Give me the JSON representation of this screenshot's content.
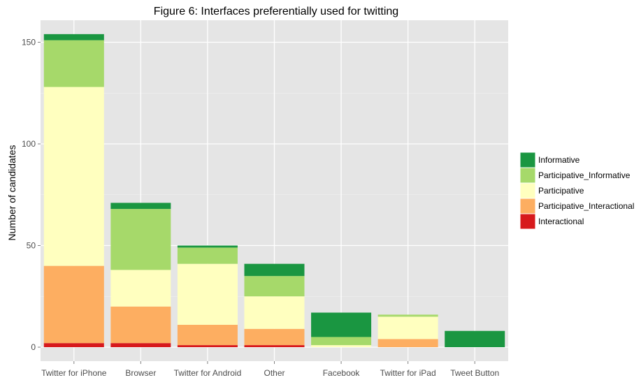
{
  "chart_data": {
    "type": "bar",
    "stacked": true,
    "title": "Figure 6: Interfaces preferentially used for twitting",
    "xlabel": "",
    "ylabel": "Number of candidates",
    "ylim": [
      0,
      155
    ],
    "yticks": [
      0,
      50,
      100,
      150
    ],
    "grid": true,
    "legend_position": "right",
    "categories": [
      "Twitter for iPhone",
      "Browser",
      "Twitter for Android",
      "Other",
      "Facebook",
      "Twitter for iPad",
      "Tweet Button"
    ],
    "series": [
      {
        "name": "Interactional",
        "color": "#d7191c",
        "values": [
          2,
          2,
          1,
          1,
          0,
          0,
          0
        ]
      },
      {
        "name": "Participative_Interactional",
        "color": "#fdae61",
        "values": [
          38,
          18,
          10,
          8,
          0,
          4,
          0
        ]
      },
      {
        "name": "Participative",
        "color": "#ffffbf",
        "values": [
          88,
          18,
          30,
          16,
          1,
          11,
          0
        ]
      },
      {
        "name": "Participative_Informative",
        "color": "#a6d96a",
        "values": [
          23,
          30,
          8,
          10,
          4,
          1,
          0
        ]
      },
      {
        "name": "Informative",
        "color": "#1a9641",
        "values": [
          3,
          3,
          1,
          6,
          12,
          0,
          8
        ]
      }
    ],
    "legend_order": [
      "Informative",
      "Participative_Informative",
      "Participative",
      "Participative_Interactional",
      "Interactional"
    ]
  }
}
